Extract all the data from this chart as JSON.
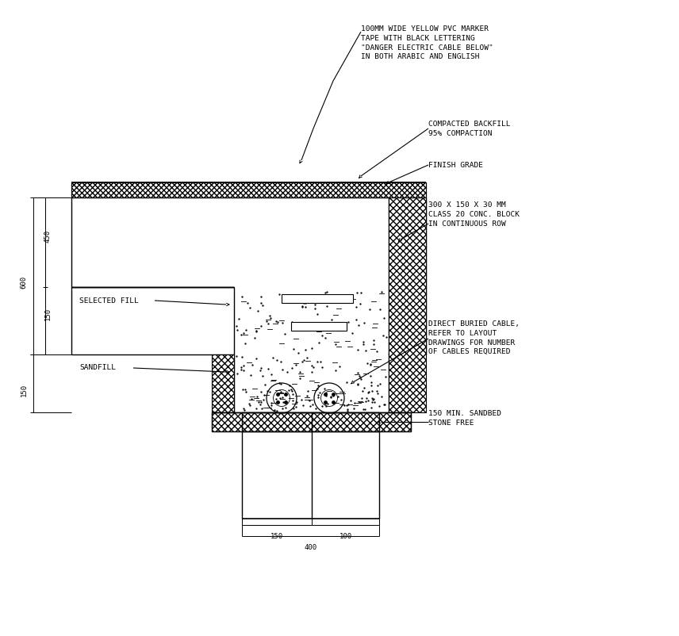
{
  "bg_color": "#ffffff",
  "line_color": "#000000",
  "annotations": {
    "marker_tape": "100MM WIDE YELLOW PVC MARKER\nTAPE WITH BLACK LETTERING\n\"DANGER ELECTRIC CABLE BELOW\"\nIN BOTH ARABIC AND ENGLISH",
    "compacted": "COMPACTED BACKFILL\n95% COMPACTION",
    "finish_grade": "FINISH GRADE",
    "conc_block": "300 X 150 X 30 MM\nCLASS 20 CONC. BLOCK\nIN CONTINUOUS ROW",
    "selected_fill": "SELECTED FILL",
    "sandfill": "SANDFILL",
    "direct_cable": "DIRECT BURIED CABLE,\nREFER TO LAYOUT\nDRAWINGS FOR NUMBER\nOF CABLES REQUIRED",
    "sandbed": "150 MIN. SANDBED\nSTONE FREE"
  }
}
